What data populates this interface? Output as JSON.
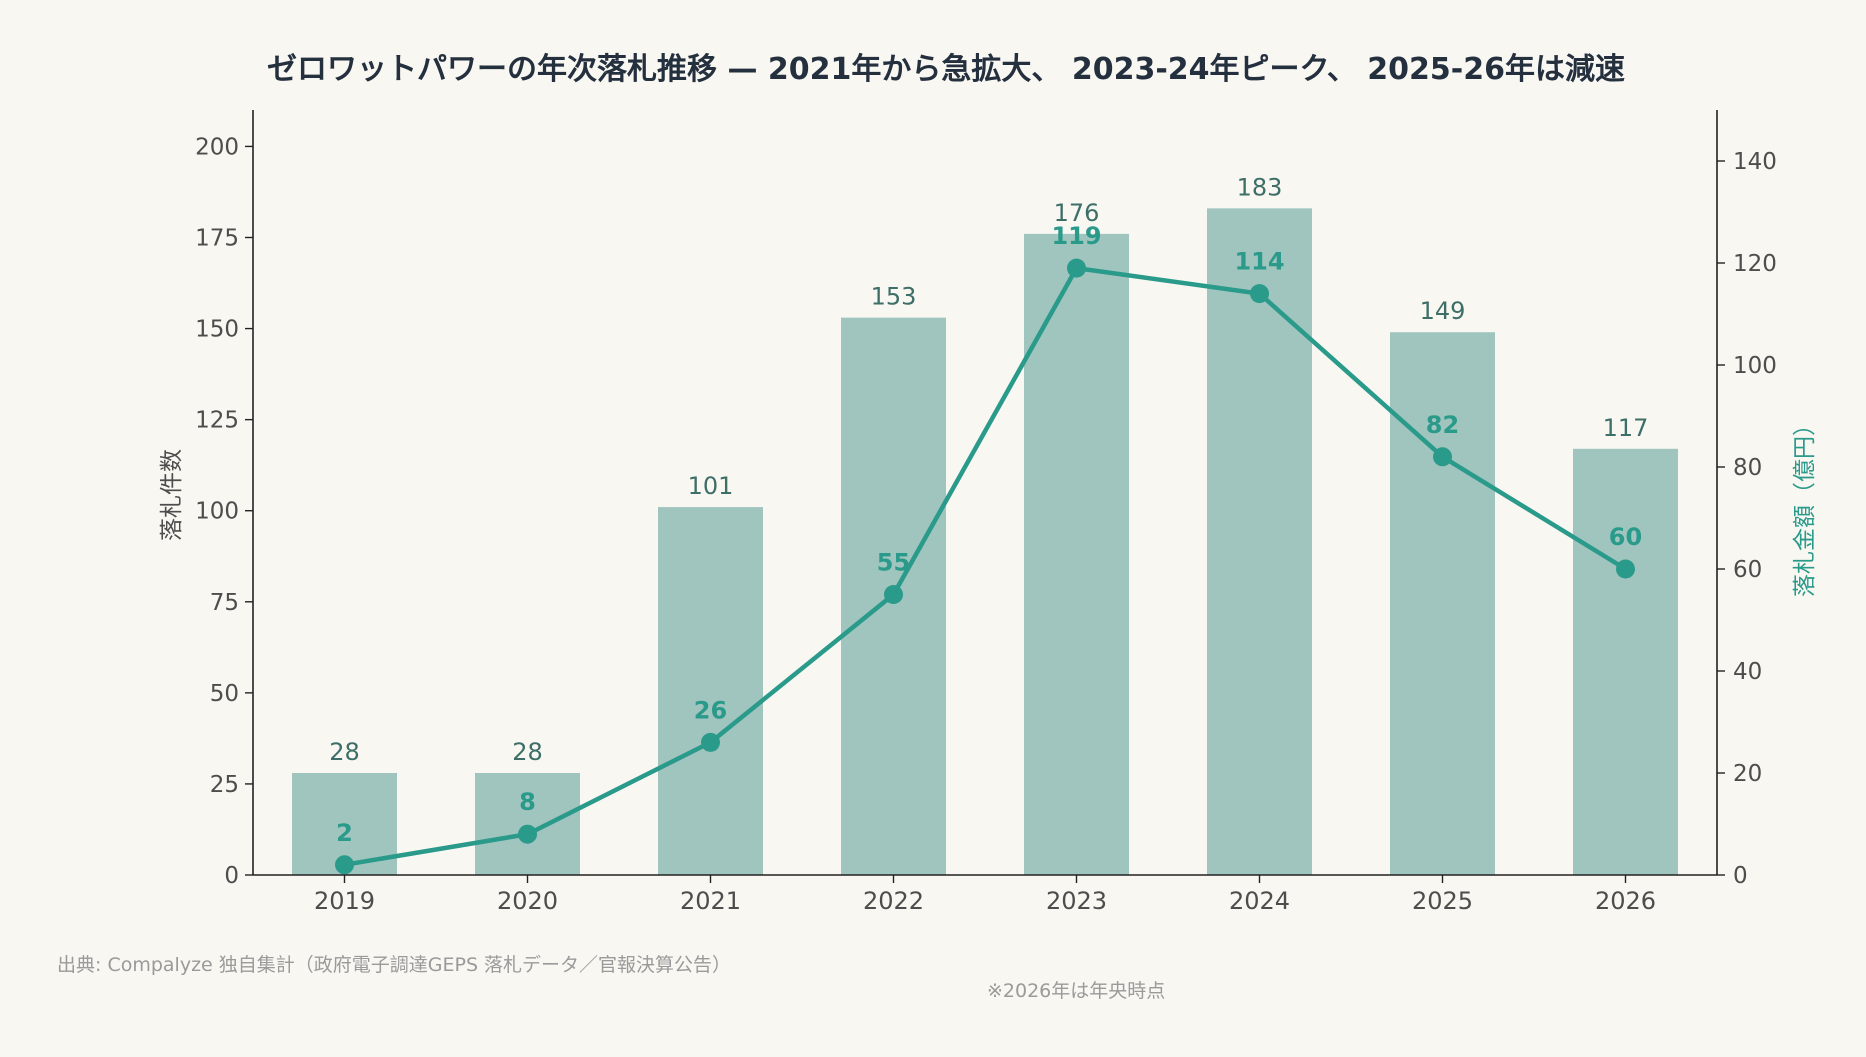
{
  "chart_data": {
    "type": "bar",
    "title": "ゼロワットパワーの年次落札推移 — 2021年から急拡大、 2023-24年ピーク、 2025-26年は減速",
    "categories": [
      "2019",
      "2020",
      "2021",
      "2022",
      "2023",
      "2024",
      "2025",
      "2026"
    ],
    "series": [
      {
        "type": "bar",
        "axis": "left",
        "values": [
          28,
          28,
          101,
          153,
          176,
          183,
          149,
          117
        ],
        "color": "#a0c4be"
      },
      {
        "type": "line",
        "axis": "right",
        "values": [
          2,
          8,
          26,
          55,
          119,
          114,
          82,
          60
        ],
        "color": "#2a9a8a"
      }
    ],
    "ylabel": "落札件数",
    "ylim": [
      0,
      210
    ],
    "yticks": [
      0,
      25,
      50,
      75,
      100,
      125,
      150,
      175,
      200
    ],
    "y2label": "落札金額（億円）",
    "y2lim": [
      0,
      150
    ],
    "y2ticks": [
      0,
      20,
      40,
      60,
      80,
      100,
      120,
      140
    ],
    "grid": false,
    "source": "出典: Compalyze 独自集計（政府電子調達GEPS 落札データ／官報決算公告）",
    "note": "※2026年は年央時点"
  }
}
